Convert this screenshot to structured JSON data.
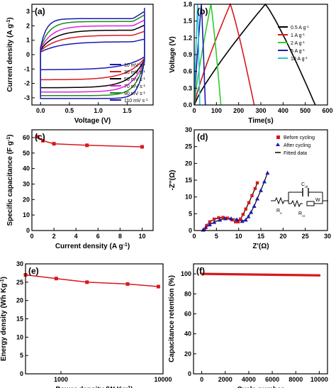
{
  "chart_data": [
    {
      "id": "a",
      "type": "line",
      "panel_label": "(a)",
      "xlabel": "Voltage (V)",
      "ylabel": "Current density (A g⁻¹)",
      "xlim": [
        -0.15,
        1.95
      ],
      "ylim": [
        -3.5,
        3.5
      ],
      "xticks": [
        0.0,
        0.5,
        1.0,
        1.5
      ],
      "yticks": [
        -3,
        -2,
        -1,
        0,
        1,
        2,
        3
      ],
      "legend_position": "bottom-right",
      "series": [
        {
          "name": "10 mV s⁻¹",
          "color": "#1a1ab0",
          "amp_top": 0.9,
          "amp_bottom": -1.05,
          "rise": 0.35
        },
        {
          "name": "30 mV s⁻¹",
          "color": "#d7191c",
          "amp_top": 1.35,
          "amp_bottom": -1.75,
          "rise": 0.3
        },
        {
          "name": "50 mV s⁻¹",
          "color": "#000000",
          "amp_top": 1.7,
          "amp_bottom": -2.3,
          "rise": 0.25
        },
        {
          "name": "70 mV s⁻¹",
          "color": "#e020e0",
          "amp_top": 2.0,
          "amp_bottom": -2.6,
          "rise": 0.2
        },
        {
          "name": "90 mV s⁻¹",
          "color": "#1a8a1a",
          "amp_top": 2.3,
          "amp_bottom": -2.85,
          "rise": 0.15
        },
        {
          "name": "110 mV s⁻¹",
          "color": "#1a1ab0",
          "amp_top": 2.5,
          "amp_bottom": -3.05,
          "rise": 0.1
        }
      ]
    },
    {
      "id": "b",
      "type": "line",
      "panel_label": "(b)",
      "xlabel": "Time(s)",
      "ylabel": "Voltage (V)",
      "xlim": [
        0,
        600
      ],
      "ylim": [
        0,
        1.8
      ],
      "xticks": [
        0,
        100,
        200,
        300,
        400,
        500,
        600
      ],
      "yticks": [
        0.0,
        0.3,
        0.6,
        0.9,
        1.2,
        1.5,
        1.8
      ],
      "legend_position": "right",
      "series": [
        {
          "name": "0.5 A g⁻¹",
          "color": "#000000",
          "x": [
            0,
            320,
            545
          ]
        },
        {
          "name": "1 A g⁻¹",
          "color": "#d7191c",
          "x": [
            0,
            162,
            270
          ]
        },
        {
          "name": "2 A g⁻¹",
          "color": "#2ecc2e",
          "x": [
            0,
            75,
            120
          ]
        },
        {
          "name": "5 A g⁻¹",
          "color": "#1a1ab0",
          "x": [
            0,
            32,
            50
          ]
        },
        {
          "name": "10 A g⁻¹",
          "color": "#29c4d6",
          "x": [
            0,
            15,
            25
          ]
        }
      ]
    },
    {
      "id": "c",
      "type": "line",
      "panel_label": "(c)",
      "xlabel": "Current density (A g⁻¹)",
      "ylabel": "Specific capacitance (F g⁻¹)",
      "xlim": [
        0,
        11
      ],
      "ylim": [
        0,
        65
      ],
      "xticks": [
        0,
        2,
        4,
        6,
        8,
        10
      ],
      "yticks": [
        0,
        10,
        20,
        30,
        40,
        50,
        60
      ],
      "series": [
        {
          "name": "",
          "color": "#d7191c",
          "x": [
            0.5,
            1,
            2,
            5,
            10
          ],
          "y": [
            60.5,
            58,
            56,
            55,
            54
          ]
        }
      ]
    },
    {
      "id": "d",
      "type": "scatter",
      "panel_label": "(d)",
      "xlabel": "Z'(Ω)",
      "ylabel": "-Z''(Ω)",
      "xlim": [
        0,
        30
      ],
      "ylim": [
        0,
        30
      ],
      "xticks": [
        0,
        5,
        10,
        15,
        20,
        25,
        30
      ],
      "yticks": [
        0,
        5,
        10,
        15,
        20,
        25,
        30
      ],
      "legend_position": "top-right",
      "series": [
        {
          "name": "Before cycling",
          "color": "#d7191c",
          "marker": "square",
          "x": [
            2.3,
            2.8,
            3.5,
            4.5,
            5.5,
            6.5,
            7.5,
            8.5,
            9.3,
            9.9,
            10.4,
            11.0,
            11.6,
            12.3,
            13.0,
            13.7,
            14.2
          ],
          "y": [
            0.3,
            1.5,
            2.6,
            3.4,
            3.8,
            3.9,
            3.7,
            3.2,
            2.6,
            2.6,
            3.4,
            4.8,
            6.4,
            8.3,
            10.4,
            12.5,
            14.2
          ]
        },
        {
          "name": "After cycling",
          "color": "#1a1ab0",
          "marker": "triangle",
          "x": [
            2.0,
            2.6,
            3.5,
            4.5,
            5.8,
            7.0,
            8.3,
            9.6,
            10.8,
            11.6,
            12.2,
            12.8,
            13.5,
            14.2,
            15.0,
            15.8,
            16.5
          ],
          "y": [
            0.2,
            1.0,
            1.8,
            2.5,
            3.2,
            3.6,
            3.6,
            3.3,
            2.8,
            3.2,
            4.2,
            5.5,
            7.3,
            9.5,
            12.0,
            14.6,
            17.2
          ]
        },
        {
          "name": "Fitted data",
          "color": "#000000",
          "marker": "line"
        }
      ],
      "circuit_labels": {
        "cdl": "C",
        "cdl_sub": "dl",
        "w": "W",
        "rs": "R",
        "rs_sub": "s",
        "rct": "R",
        "rct_sub": "ct"
      }
    },
    {
      "id": "e",
      "type": "line",
      "panel_label": "(e)",
      "xlabel": "Power density (W Kg⁻¹)",
      "ylabel": "Energy density (Wh Kg⁻¹)",
      "xscale": "log",
      "xlim": [
        450,
        10000
      ],
      "ylim": [
        0,
        30
      ],
      "xticks": [
        1000,
        10000
      ],
      "xticklabels": [
        "1000",
        "10000"
      ],
      "yticks": [
        0,
        5,
        10,
        15,
        20,
        25,
        30
      ],
      "series": [
        {
          "name": "",
          "color": "#d7191c",
          "x": [
            450,
            900,
            1800,
            4500,
            9000
          ],
          "y": [
            27.0,
            26.0,
            25.0,
            24.5,
            23.8
          ]
        }
      ]
    },
    {
      "id": "f",
      "type": "line",
      "panel_label": "(f)",
      "xlabel": "Cycle number",
      "ylabel": "Capacitance retention (%)",
      "xlim": [
        -700,
        10700
      ],
      "ylim": [
        0,
        110
      ],
      "xticks": [
        0,
        2000,
        4000,
        6000,
        8000,
        10000
      ],
      "yticks": [
        0,
        20,
        40,
        60,
        80,
        100
      ],
      "series": [
        {
          "name": "",
          "color": "#d7191c",
          "x_start": 0,
          "x_end": 10000,
          "y_start": 100,
          "y_end": 98.5,
          "n_points": 70
        }
      ]
    }
  ]
}
